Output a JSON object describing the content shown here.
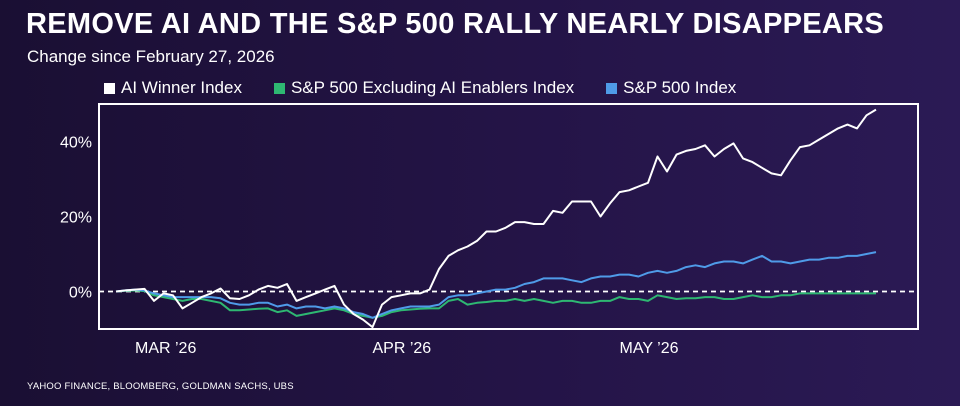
{
  "title": "REMOVE AI AND THE S&P 500 RALLY NEARLY DISAPPEARS",
  "subtitle": "Change since February 27, 2026",
  "source": "YAHOO FINANCE, BLOOMBERG, GOLDMAN SACHS, UBS",
  "colors": {
    "ai_winner": "#ffffff",
    "ex_ai": "#2eb872",
    "sp500": "#4f9be8"
  },
  "chart_data": {
    "type": "line",
    "ylim": [
      -10,
      50
    ],
    "xlim": [
      0,
      80
    ],
    "y_ticks": [
      {
        "value": 0,
        "label": "0%"
      },
      {
        "value": 20,
        "label": "20%"
      },
      {
        "value": 40,
        "label": "40%"
      }
    ],
    "x_ticks": [
      {
        "value": 2,
        "label": "MAR ’26"
      },
      {
        "value": 27,
        "label": "APR ’26"
      },
      {
        "value": 53,
        "label": "MAY ’26"
      }
    ],
    "baseline": 0,
    "series": [
      {
        "name": "AI Winner Index",
        "color_key": "ai_winner",
        "values": [
          0,
          0.3,
          0.5,
          0.7,
          -2.5,
          -0.5,
          -1.0,
          -4.5,
          -3.0,
          -1.5,
          -0.5,
          0.8,
          -1.8,
          -2.0,
          -1.0,
          0.5,
          1.5,
          1.0,
          2.0,
          -2.5,
          -1.5,
          -0.5,
          0.5,
          1.5,
          -3.5,
          -6.0,
          -7.5,
          -9.5,
          -3.5,
          -1.5,
          -1.0,
          -0.5,
          -0.5,
          0.5,
          6.0,
          9.5,
          11.0,
          12.0,
          13.5,
          16.0,
          16.0,
          17.0,
          18.5,
          18.5,
          18.0,
          18.0,
          21.5,
          21.0,
          24.0,
          24.0,
          24.0,
          20.0,
          23.5,
          26.5,
          27.0,
          28.0,
          29.0,
          36.0,
          32.0,
          36.5,
          37.5,
          38.0,
          39.0,
          36.0,
          38.0,
          39.5,
          35.5,
          34.5,
          33.0,
          31.5,
          31.0,
          35.0,
          38.5,
          39.0,
          40.5,
          42.0,
          43.5,
          44.5,
          43.5,
          47.0,
          48.5
        ]
      },
      {
        "name": "S&P 500 Excluding AI Enablers Index",
        "color_key": "ex_ai",
        "values": [
          0,
          0.2,
          0.3,
          0.1,
          -1.0,
          -1.5,
          -2.0,
          -2.5,
          -2.0,
          -2.0,
          -2.5,
          -3.0,
          -5.0,
          -5.0,
          -4.8,
          -4.6,
          -4.5,
          -5.5,
          -5.0,
          -6.5,
          -6.0,
          -5.5,
          -5.0,
          -4.5,
          -5.0,
          -6.0,
          -6.5,
          -7.0,
          -6.5,
          -5.5,
          -5.0,
          -4.8,
          -4.6,
          -4.5,
          -4.5,
          -2.5,
          -2.0,
          -3.5,
          -3.0,
          -2.8,
          -2.5,
          -2.5,
          -2.0,
          -2.5,
          -2.0,
          -2.5,
          -3.0,
          -2.5,
          -2.5,
          -3.0,
          -3.0,
          -2.5,
          -2.5,
          -1.5,
          -2.0,
          -2.0,
          -2.5,
          -1.0,
          -1.5,
          -2.0,
          -1.8,
          -1.8,
          -1.5,
          -1.5,
          -2.0,
          -2.0,
          -1.5,
          -1.0,
          -1.5,
          -1.5,
          -1.0,
          -1.0,
          -0.5,
          -0.5,
          -0.5,
          -0.5,
          -0.5,
          -0.5,
          -0.5,
          -0.5,
          -0.5
        ]
      },
      {
        "name": "S&P 500 Index",
        "color_key": "sp500",
        "values": [
          0,
          0.3,
          0.5,
          0.3,
          -0.5,
          -1.0,
          -1.5,
          -1.5,
          -1.5,
          -1.5,
          -1.5,
          -1.8,
          -3.0,
          -3.5,
          -3.5,
          -3.0,
          -3.0,
          -4.0,
          -3.5,
          -4.5,
          -4.0,
          -4.0,
          -4.5,
          -4.0,
          -4.5,
          -5.5,
          -6.0,
          -7.0,
          -6.0,
          -5.0,
          -4.5,
          -4.0,
          -4.0,
          -4.0,
          -3.5,
          -1.5,
          -1.0,
          -1.0,
          -0.5,
          0.0,
          0.5,
          0.5,
          1.0,
          2.0,
          2.5,
          3.5,
          3.5,
          3.5,
          3.0,
          2.5,
          3.5,
          4.0,
          4.0,
          4.5,
          4.5,
          4.0,
          5.0,
          5.5,
          5.0,
          5.5,
          6.5,
          7.0,
          6.5,
          7.5,
          8.0,
          8.0,
          7.5,
          8.5,
          9.5,
          8.0,
          8.0,
          7.5,
          8.0,
          8.5,
          8.5,
          9.0,
          9.0,
          9.5,
          9.5,
          10.0,
          10.5
        ]
      }
    ],
    "grid": false,
    "legend_position": "top"
  }
}
